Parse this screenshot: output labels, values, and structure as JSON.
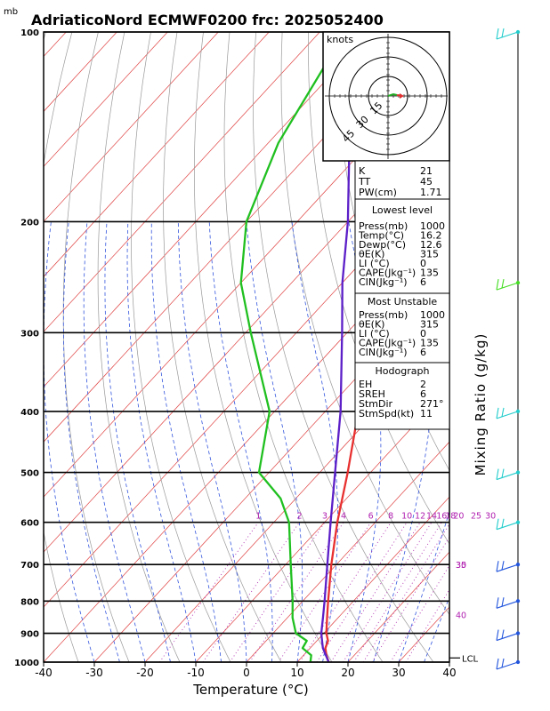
{
  "chart_data": {
    "type": "line",
    "title": "AdriaticoNord ECMWF0200 frc: 2025052400",
    "pressure_unit_label": "mb",
    "xlabel": "Temperature (°C)",
    "ylabel_right": "Mixing Ratio (g/kg)",
    "xlim": [
      -40,
      40
    ],
    "ylim": [
      1000,
      100
    ],
    "x_ticks": [
      "-40",
      "-30",
      "-20",
      "-10",
      "0",
      "10",
      "20",
      "30",
      "40"
    ],
    "pressure_levels": [
      "100",
      "200",
      "300",
      "400",
      "500",
      "600",
      "700",
      "800",
      "900",
      "1000"
    ],
    "mixing_ratio_labels": [
      "1",
      "2",
      "3",
      "4",
      "6",
      "8",
      "10",
      "12",
      "14",
      "16",
      "18",
      "20",
      "25",
      "30"
    ],
    "theta_side_labels": [
      {
        "value": "30",
        "pressure": 700
      },
      {
        "value": "35",
        "pressure": 700
      },
      {
        "value": "40",
        "pressure": 840
      }
    ],
    "lcl_label": "LCL",
    "lcl_pressure": 985,
    "series": [
      {
        "key": "temperature",
        "color": "#e83030",
        "points": [
          [
            1000,
            16.2
          ],
          [
            975,
            14.5
          ],
          [
            950,
            13.0
          ],
          [
            925,
            12.2
          ],
          [
            900,
            10.5
          ],
          [
            850,
            7.8
          ],
          [
            800,
            5.0
          ],
          [
            700,
            -1.0
          ],
          [
            600,
            -7.5
          ],
          [
            500,
            -14.5
          ],
          [
            400,
            -23.5
          ],
          [
            300,
            -37.0
          ],
          [
            250,
            -44.0
          ],
          [
            200,
            -49.0
          ],
          [
            150,
            -57.0
          ],
          [
            100,
            -64.0
          ]
        ]
      },
      {
        "key": "dewpoint",
        "color": "#20c020",
        "points": [
          [
            1000,
            12.6
          ],
          [
            975,
            11.5
          ],
          [
            950,
            8.5
          ],
          [
            925,
            8.0
          ],
          [
            900,
            4.5
          ],
          [
            850,
            1.0
          ],
          [
            800,
            -2.0
          ],
          [
            700,
            -9.0
          ],
          [
            600,
            -17.0
          ],
          [
            550,
            -23.0
          ],
          [
            500,
            -32.0
          ],
          [
            400,
            -41.0
          ],
          [
            300,
            -59.0
          ],
          [
            250,
            -70.0
          ],
          [
            200,
            -80.0
          ],
          [
            150,
            -88.0
          ],
          [
            100,
            -95.0
          ]
        ]
      },
      {
        "key": "parcel",
        "color": "#5c1fc8",
        "points": [
          [
            1000,
            16.2
          ],
          [
            950,
            12.5
          ],
          [
            900,
            9.5
          ],
          [
            850,
            7.0
          ],
          [
            800,
            4.3
          ],
          [
            700,
            -1.8
          ],
          [
            600,
            -8.8
          ],
          [
            500,
            -17.0
          ],
          [
            400,
            -27.0
          ],
          [
            300,
            -41.0
          ],
          [
            250,
            -50.0
          ],
          [
            200,
            -60.0
          ],
          [
            150,
            -74.0
          ],
          [
            125,
            -82.0
          ],
          [
            110,
            -87.0
          ]
        ]
      }
    ]
  },
  "hodograph": {
    "unit_label": "knots",
    "ring_labels": [
      "15",
      "30",
      "45"
    ]
  },
  "indices": {
    "k_label": "K",
    "k_value": "21",
    "tt_label": "TT",
    "tt_value": "45",
    "pw_label": "PW(cm)",
    "pw_value": "1.71"
  },
  "lowest_level": {
    "header": "Lowest level",
    "rows": [
      {
        "label": "Press(mb)",
        "value": "1000"
      },
      {
        "label": "Temp(°C)",
        "value": "16.2"
      },
      {
        "label": "Dewp(°C)",
        "value": "12.6"
      },
      {
        "label": "θE(K)",
        "value": "315"
      },
      {
        "label": "LI (°C)",
        "value": "0"
      },
      {
        "label": "CAPE(Jkg⁻¹)",
        "value": "135"
      },
      {
        "label": "CIN(Jkg⁻¹)",
        "value": "6"
      }
    ]
  },
  "most_unstable": {
    "header": "Most Unstable",
    "rows": [
      {
        "label": "Press(mb)",
        "value": "1000"
      },
      {
        "label": "θE(K)",
        "value": "315"
      },
      {
        "label": "LI (°C)",
        "value": "0"
      },
      {
        "label": "CAPE(Jkg⁻¹)",
        "value": "135"
      },
      {
        "label": "CIN(Jkg⁻¹)",
        "value": "6"
      }
    ]
  },
  "hodograph_params": {
    "header": "Hodograph",
    "rows": [
      {
        "label": "EH",
        "value": "2"
      },
      {
        "label": "SREH",
        "value": "6"
      },
      {
        "label": "StmDir",
        "value": "271°"
      },
      {
        "label": "StmSpd(kt)",
        "value": "11"
      }
    ]
  },
  "wind_profile": {
    "barbs": [
      {
        "pressure": 100,
        "color": "#22cccc"
      },
      {
        "pressure": 250,
        "color": "#44dd22"
      },
      {
        "pressure": 400,
        "color": "#22cccc"
      },
      {
        "pressure": 500,
        "color": "#22cccc"
      },
      {
        "pressure": 600,
        "color": "#22cccc"
      },
      {
        "pressure": 700,
        "color": "#2255dd"
      },
      {
        "pressure": 800,
        "color": "#2255dd"
      },
      {
        "pressure": 900,
        "color": "#2255dd"
      },
      {
        "pressure": 1000,
        "color": "#2255dd"
      }
    ]
  }
}
